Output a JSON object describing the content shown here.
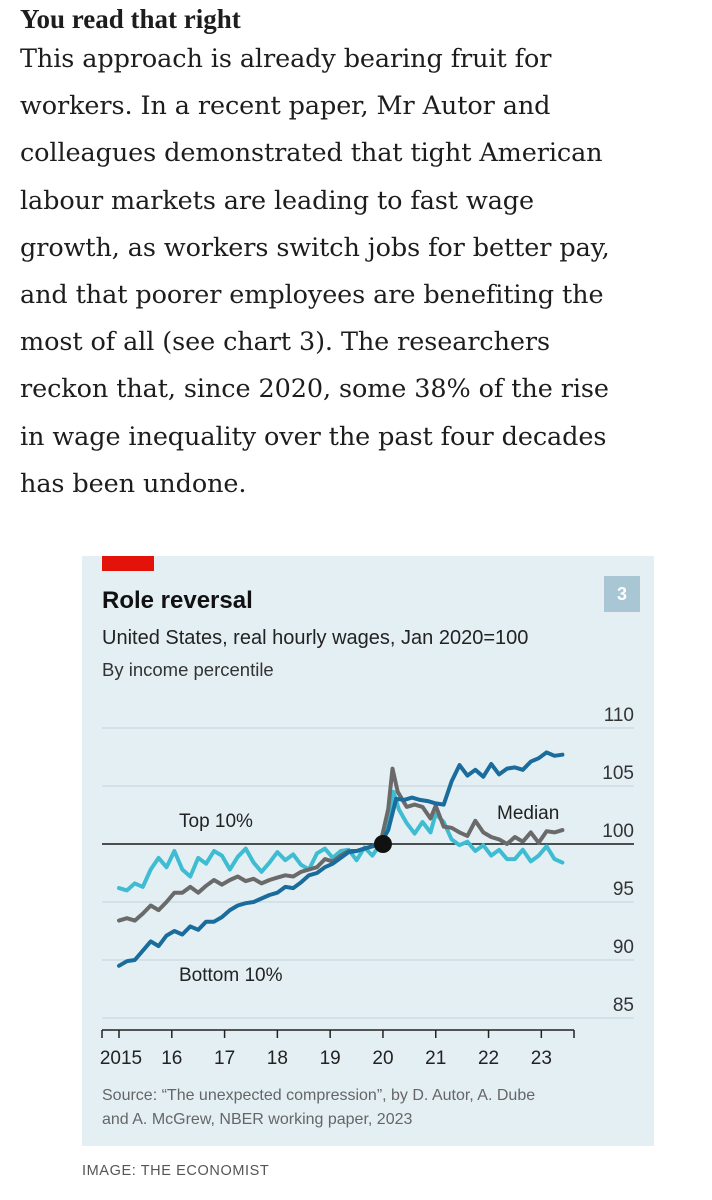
{
  "article": {
    "heading": "You read that right",
    "lines": [
      "This approach is already bearing fruit for",
      "workers. In a recent paper, Mr Autor and",
      "colleagues demonstrated that tight American",
      "labour markets are leading to fast wage",
      "growth, as workers switch jobs for better pay,",
      "and that poorer employees are benefiting the",
      "most of all (see chart 3). The researchers",
      "reckon that, since 2020, some 38% of the rise",
      "in wage inequality over the past four decades",
      "has been undone."
    ]
  },
  "caption": "IMAGE: THE ECONOMIST",
  "colors": {
    "background": "#e4eff4",
    "red_tab": "#e3120b",
    "badge": "#a8c6d4",
    "bottom10": "#1a6c9c",
    "median": "#6a6a6a",
    "top10": "#3ebcd2",
    "marker": "#111111"
  },
  "chart_data": {
    "type": "line",
    "title": "Role reversal",
    "subtitle": "United States, real hourly wages, Jan 2020=100",
    "subtitle2": "By income percentile",
    "badge": "3",
    "source_lines": [
      "Source: “The unexpected compression”, by D. Autor, A. Dube",
      "and A. McGrew, NBER working paper, 2023"
    ],
    "ylim": [
      85,
      110
    ],
    "yticks": [
      "110",
      "105",
      "100",
      "95",
      "90",
      "85"
    ],
    "ytick_values": [
      110,
      105,
      100,
      95,
      90,
      85
    ],
    "reference_line": 100,
    "xlim": [
      2015,
      2024
    ],
    "xticks": [
      {
        "value": 2015.0,
        "label": "2015"
      },
      {
        "value": 2016.0,
        "label": "16"
      },
      {
        "value": 2017.0,
        "label": "17"
      },
      {
        "value": 2018.0,
        "label": "18"
      },
      {
        "value": 2019.0,
        "label": "19"
      },
      {
        "value": 2020.0,
        "label": "20"
      },
      {
        "value": 2021.0,
        "label": "21"
      },
      {
        "value": 2022.0,
        "label": "22"
      },
      {
        "value": 2023.0,
        "label": "23"
      }
    ],
    "marker": {
      "x": 2020.0,
      "y": 100
    },
    "series": [
      {
        "name": "Top 10%",
        "color": "#3ebcd2",
        "x": [
          2015.0,
          2015.15,
          2015.3,
          2015.45,
          2015.6,
          2015.75,
          2015.9,
          2016.05,
          2016.2,
          2016.35,
          2016.5,
          2016.65,
          2016.8,
          2016.95,
          2017.1,
          2017.25,
          2017.4,
          2017.55,
          2017.7,
          2017.85,
          2018.0,
          2018.15,
          2018.3,
          2018.45,
          2018.6,
          2018.75,
          2018.9,
          2019.05,
          2019.2,
          2019.35,
          2019.5,
          2019.65,
          2019.8,
          2019.95,
          2020.1,
          2020.2,
          2020.3,
          2020.45,
          2020.6,
          2020.75,
          2020.9,
          2021.0,
          2021.15,
          2021.3,
          2021.45,
          2021.6,
          2021.75,
          2021.9,
          2022.05,
          2022.2,
          2022.35,
          2022.5,
          2022.65,
          2022.8,
          2022.95,
          2023.1,
          2023.25,
          2023.4
        ],
        "values": [
          96.2,
          96.0,
          96.6,
          96.3,
          97.8,
          98.8,
          98.0,
          99.4,
          97.8,
          97.2,
          98.8,
          98.3,
          99.4,
          99.0,
          97.8,
          98.9,
          99.6,
          98.4,
          97.6,
          98.4,
          99.3,
          98.6,
          99.1,
          98.2,
          97.8,
          99.2,
          99.6,
          98.8,
          99.4,
          99.5,
          98.6,
          99.7,
          99.0,
          100.0,
          101.5,
          104.5,
          103.0,
          101.8,
          100.9,
          101.9,
          101.0,
          102.6,
          101.9,
          100.4,
          99.9,
          100.2,
          99.4,
          99.9,
          99.0,
          99.5,
          98.7,
          98.7,
          99.5,
          98.5,
          99.0,
          99.8,
          98.7,
          98.4
        ]
      },
      {
        "name": "Median",
        "color": "#6a6a6a",
        "x": [
          2015.0,
          2015.15,
          2015.3,
          2015.45,
          2015.6,
          2015.75,
          2015.9,
          2016.05,
          2016.2,
          2016.35,
          2016.5,
          2016.65,
          2016.8,
          2016.95,
          2017.1,
          2017.25,
          2017.4,
          2017.55,
          2017.7,
          2017.85,
          2018.0,
          2018.15,
          2018.3,
          2018.45,
          2018.6,
          2018.75,
          2018.9,
          2019.05,
          2019.2,
          2019.35,
          2019.5,
          2019.65,
          2019.8,
          2019.95,
          2020.1,
          2020.18,
          2020.28,
          2020.45,
          2020.6,
          2020.75,
          2020.9,
          2021.0,
          2021.15,
          2021.3,
          2021.45,
          2021.6,
          2021.75,
          2021.9,
          2022.05,
          2022.2,
          2022.35,
          2022.5,
          2022.65,
          2022.8,
          2022.95,
          2023.1,
          2023.25,
          2023.4
        ],
        "values": [
          93.4,
          93.6,
          93.4,
          94.0,
          94.7,
          94.3,
          95.0,
          95.8,
          95.8,
          96.3,
          95.8,
          96.4,
          96.9,
          96.5,
          96.9,
          97.2,
          96.8,
          97.0,
          96.6,
          96.9,
          97.1,
          97.3,
          97.2,
          97.6,
          97.8,
          98.0,
          98.7,
          98.5,
          99.0,
          99.4,
          99.4,
          99.6,
          99.8,
          100.0,
          103.0,
          106.5,
          104.5,
          103.2,
          103.4,
          103.2,
          102.2,
          103.3,
          101.5,
          101.4,
          101.0,
          100.7,
          102.0,
          101.0,
          100.6,
          100.4,
          100.0,
          100.6,
          100.2,
          101.0,
          100.1,
          101.1,
          101.0,
          101.2
        ]
      },
      {
        "name": "Bottom 10%",
        "color": "#1a6c9c",
        "x": [
          2015.0,
          2015.15,
          2015.3,
          2015.45,
          2015.6,
          2015.75,
          2015.9,
          2016.05,
          2016.2,
          2016.35,
          2016.5,
          2016.65,
          2016.8,
          2016.95,
          2017.1,
          2017.25,
          2017.4,
          2017.55,
          2017.7,
          2017.85,
          2018.0,
          2018.15,
          2018.3,
          2018.45,
          2018.6,
          2018.75,
          2018.9,
          2019.05,
          2019.2,
          2019.35,
          2019.5,
          2019.65,
          2019.8,
          2019.95,
          2020.1,
          2020.25,
          2020.4,
          2020.55,
          2020.7,
          2020.85,
          2021.0,
          2021.15,
          2021.3,
          2021.45,
          2021.6,
          2021.75,
          2021.9,
          2022.05,
          2022.2,
          2022.35,
          2022.5,
          2022.65,
          2022.8,
          2022.95,
          2023.1,
          2023.25,
          2023.4
        ],
        "values": [
          89.5,
          89.9,
          90.0,
          90.8,
          91.6,
          91.2,
          92.1,
          92.5,
          92.2,
          92.9,
          92.6,
          93.3,
          93.3,
          93.7,
          94.3,
          94.7,
          94.9,
          95.0,
          95.3,
          95.6,
          95.8,
          96.3,
          96.2,
          96.7,
          97.3,
          97.5,
          98.0,
          98.3,
          98.8,
          99.3,
          99.4,
          99.6,
          99.8,
          100.0,
          101.2,
          103.9,
          103.8,
          104.0,
          103.8,
          103.7,
          103.5,
          103.4,
          105.4,
          106.8,
          105.9,
          106.4,
          105.8,
          106.9,
          106.0,
          106.5,
          106.6,
          106.4,
          107.1,
          107.4,
          107.9,
          107.6,
          107.7
        ]
      }
    ],
    "labels": [
      {
        "text": "Top 10%",
        "series": "Top 10%"
      },
      {
        "text": "Median",
        "series": "Median"
      },
      {
        "text": "Bottom 10%",
        "series": "Bottom 10%"
      }
    ]
  }
}
